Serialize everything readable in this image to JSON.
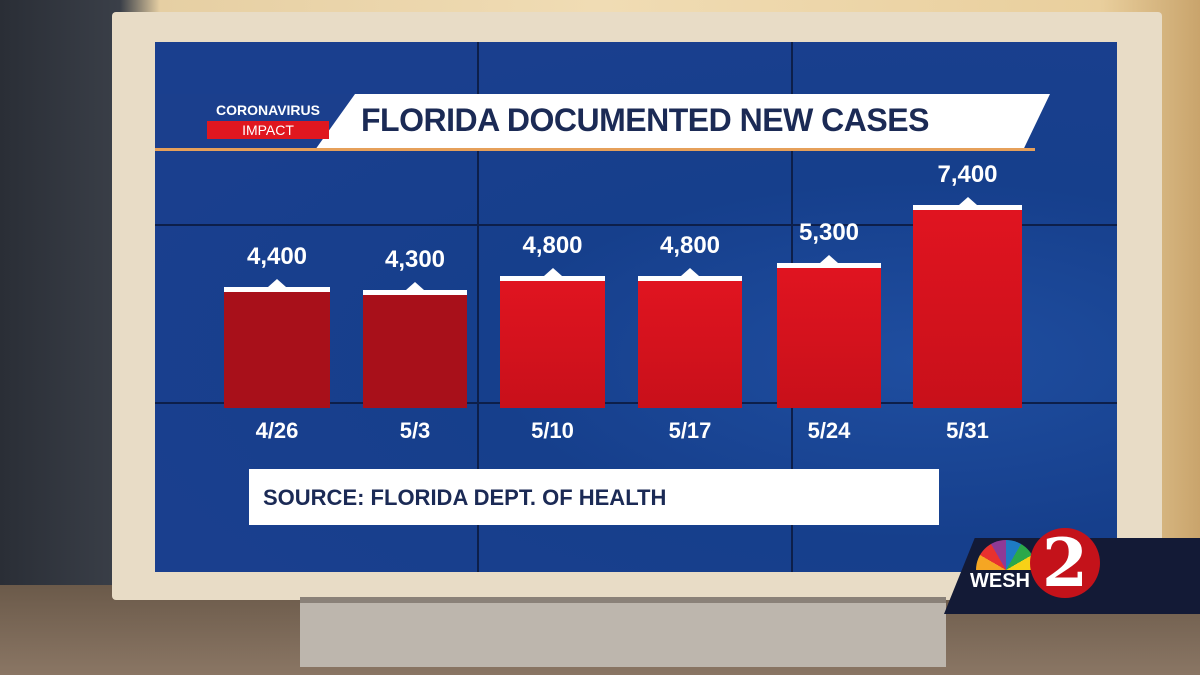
{
  "header": {
    "badge_top": "CORONAVIRUS",
    "badge_bottom": "IMPACT",
    "title": "FLORIDA DOCUMENTED NEW CASES"
  },
  "footer": {
    "source": "SOURCE: FLORIDA DEPT. OF HEALTH"
  },
  "logo": {
    "station": "WESH",
    "channel": "2"
  },
  "colors": {
    "bar": "#e01420",
    "background": "#1a3f8e",
    "title": "#1b2a55"
  },
  "chart_data": {
    "type": "bar",
    "title": "FLORIDA DOCUMENTED NEW CASES",
    "categories": [
      "4/26",
      "5/3",
      "5/10",
      "5/17",
      "5/24",
      "5/31"
    ],
    "values": [
      4400,
      4300,
      4800,
      4800,
      5300,
      7400
    ],
    "value_labels": [
      "4,400",
      "4,300",
      "4,800",
      "4,800",
      "5,300",
      "7,400"
    ],
    "xlabel": "",
    "ylabel": "",
    "ylim": [
      0,
      7400
    ],
    "grid": false,
    "legend": "none"
  }
}
